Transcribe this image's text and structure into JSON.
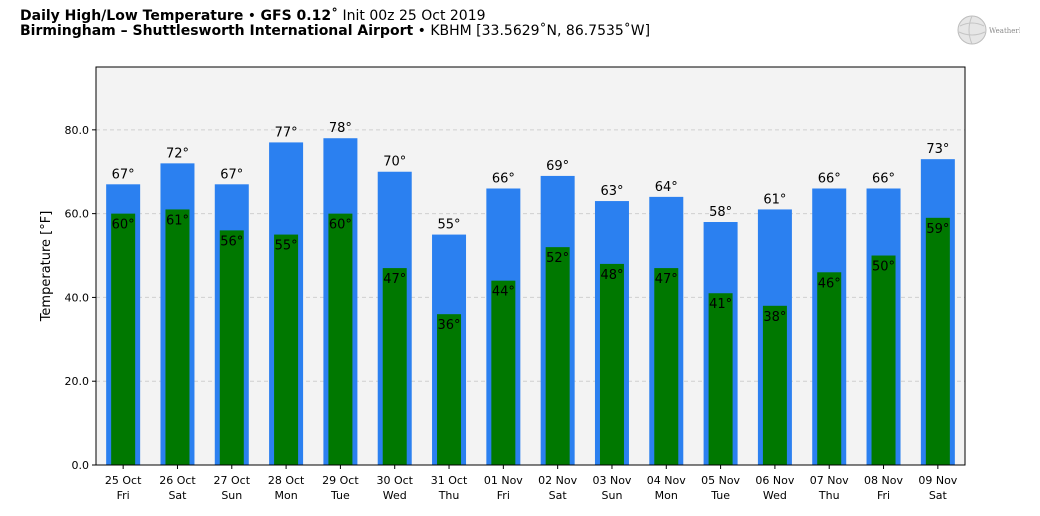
{
  "header": {
    "title_main": "Daily High/Low Temperature",
    "title_model": "GFS 0.12",
    "title_init": "Init 00z 25 Oct 2019",
    "location": "Birmingham – Shuttlesworth International Airport",
    "station": "KBHM [33.5629˚N, 86.7535˚W]",
    "separator": "•",
    "degree_mark": "˚"
  },
  "logo": {
    "text": "WeatherBELL",
    "icon": "globe-logo-icon"
  },
  "colors": {
    "high": "#2b80f0",
    "low": "#007800",
    "plot_bg": "#f3f3f3",
    "grid": "#d0d0d0"
  },
  "chart_data": {
    "type": "bar",
    "title": "Daily High/Low Temperature",
    "ylabel": "Temperature [°F]",
    "ylim": [
      0,
      95
    ],
    "yticks": [
      "0.0",
      "20.0",
      "40.0",
      "60.0",
      "80.0"
    ],
    "grid": true,
    "categories": [
      "25 Oct|Fri",
      "26 Oct|Sat",
      "27 Oct|Sun",
      "28 Oct|Mon",
      "29 Oct|Tue",
      "30 Oct|Wed",
      "31 Oct|Thu",
      "01 Nov|Fri",
      "02 Nov|Sat",
      "03 Nov|Sun",
      "04 Nov|Mon",
      "05 Nov|Tue",
      "06 Nov|Wed",
      "07 Nov|Thu",
      "08 Nov|Fri",
      "09 Nov|Sat"
    ],
    "series": [
      {
        "values": [
          67,
          72,
          67,
          77,
          78,
          70,
          55,
          66,
          69,
          63,
          64,
          58,
          61,
          66,
          66,
          73
        ]
      },
      {
        "values": [
          60,
          61,
          56,
          55,
          60,
          47,
          36,
          44,
          52,
          48,
          47,
          41,
          38,
          46,
          50,
          59
        ]
      }
    ],
    "value_suffix": "°"
  }
}
